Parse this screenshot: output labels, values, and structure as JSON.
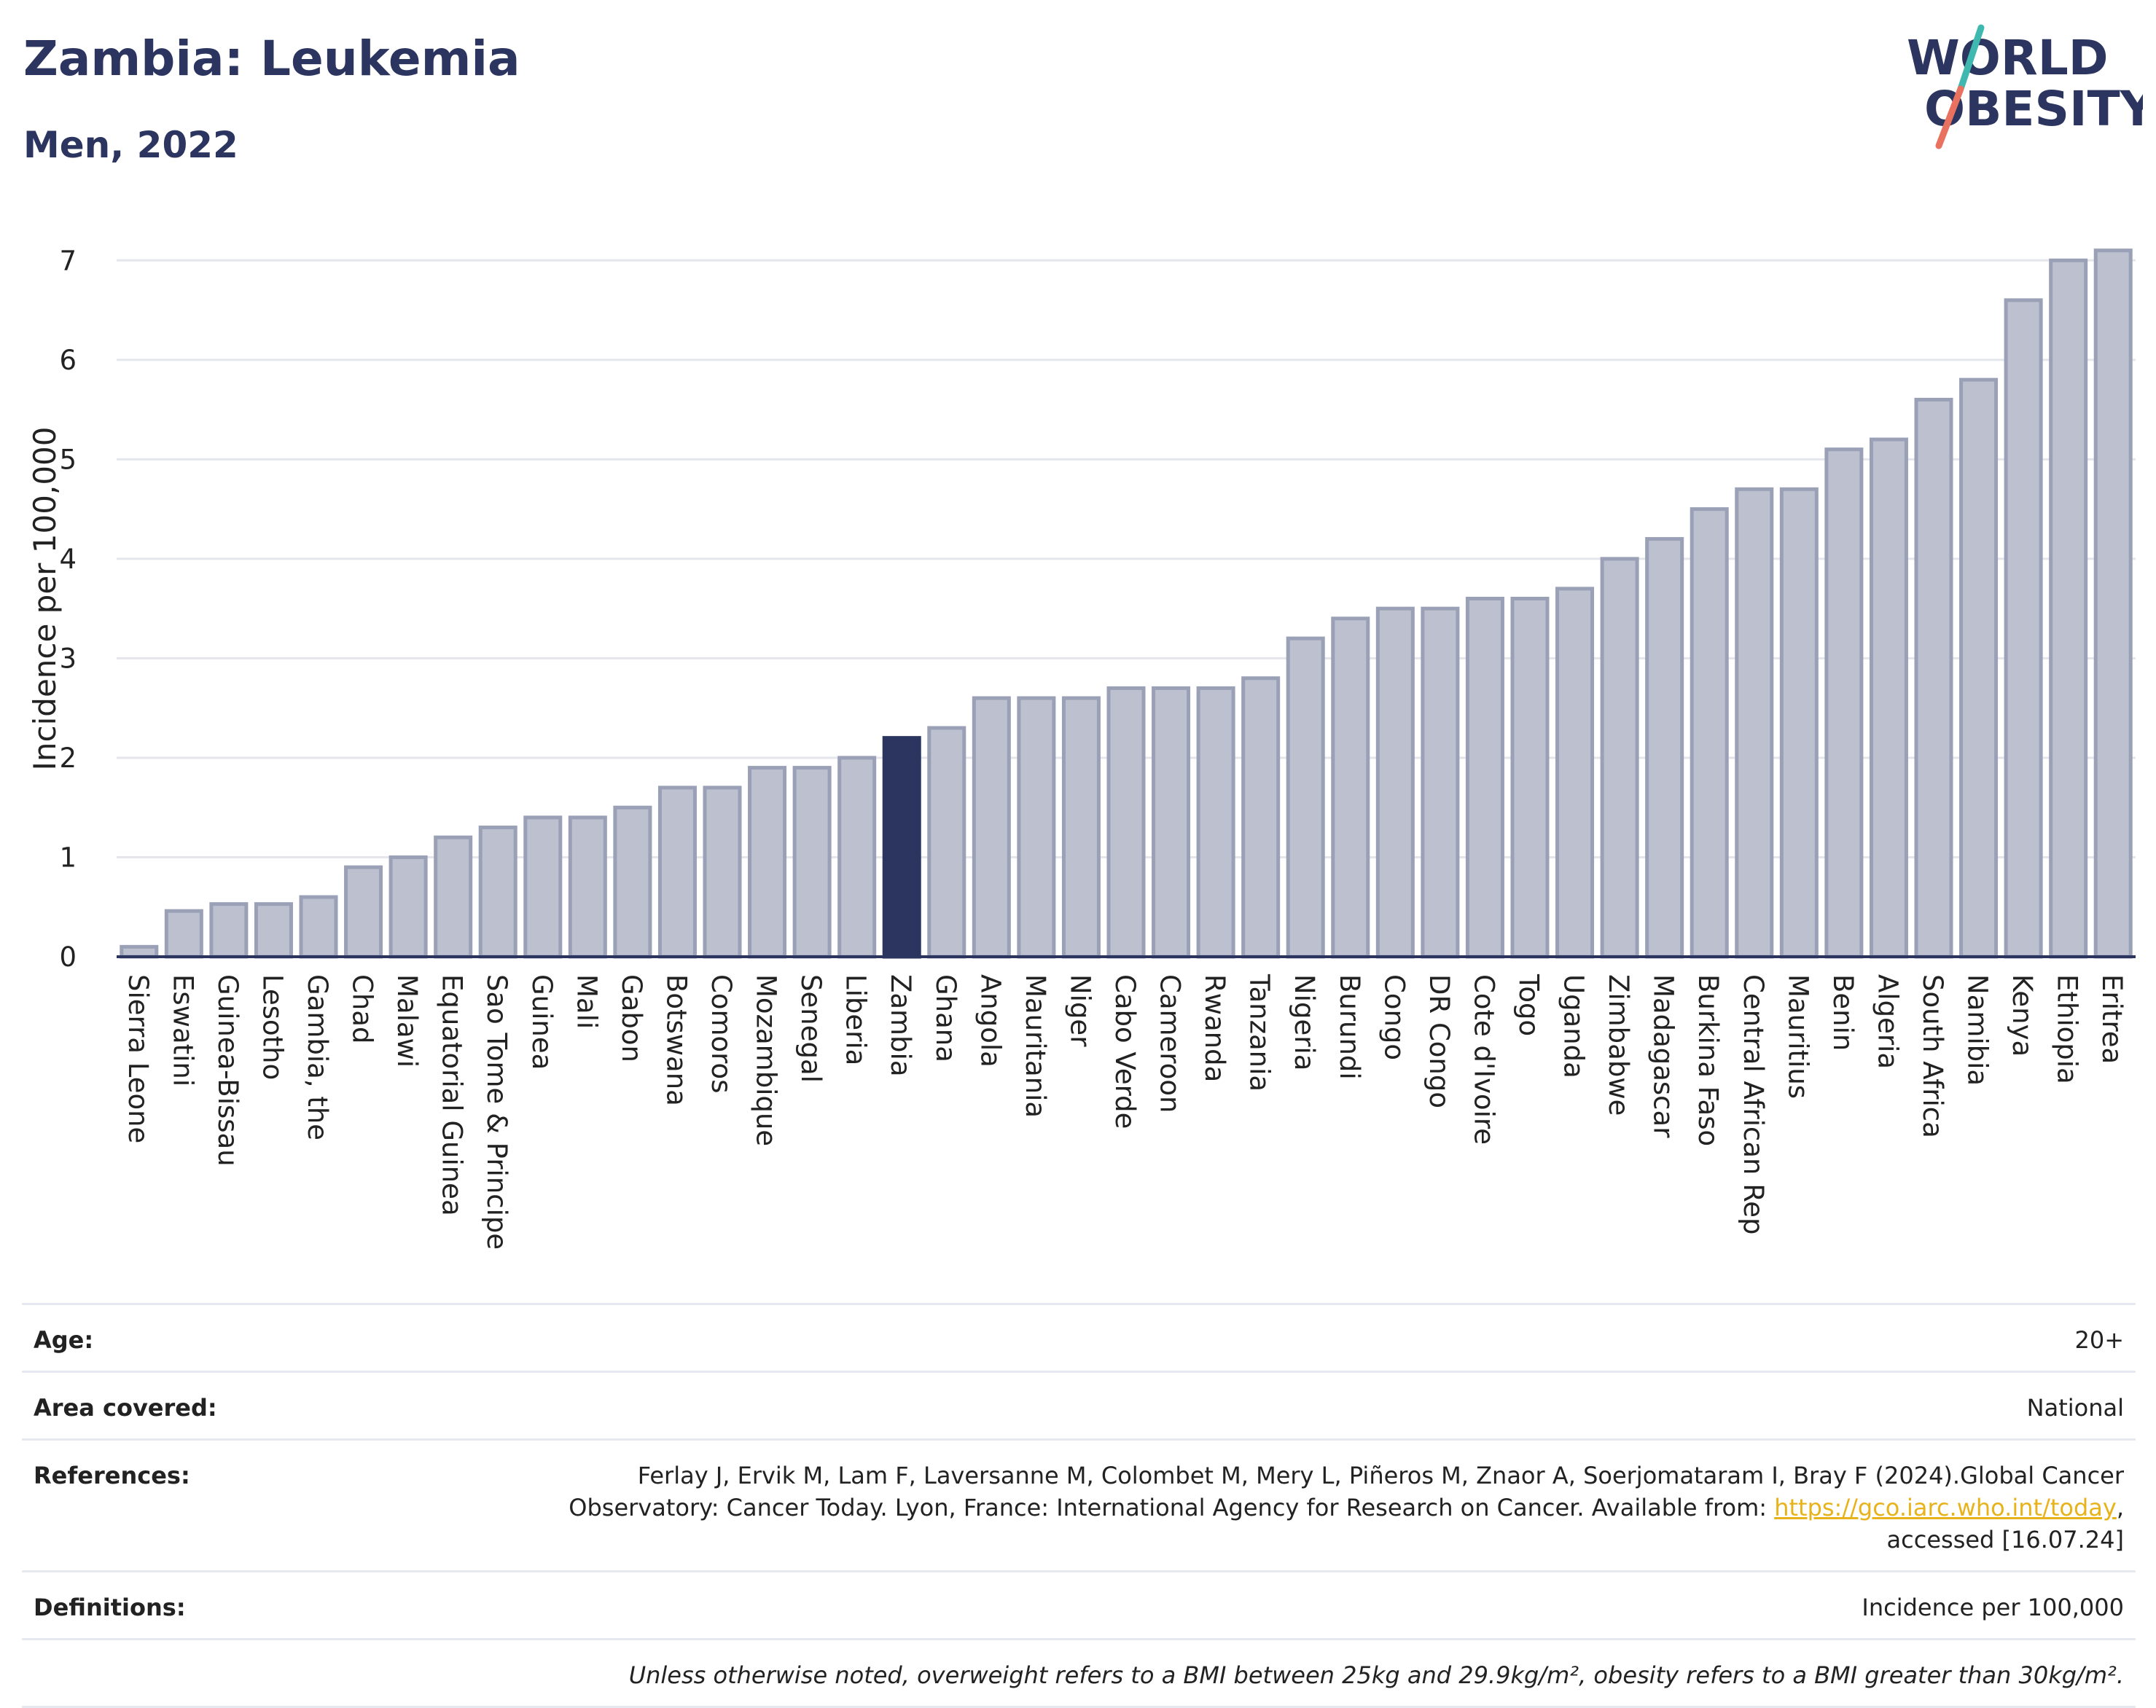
{
  "header": {
    "title": "Zambia: Leukemia",
    "subtitle": "Men, 2022",
    "logo_line1": "WORLD",
    "logo_line2": "OBESITY"
  },
  "chart_data": {
    "type": "bar",
    "title": "Zambia: Leukemia",
    "subtitle": "Men, 2022",
    "xlabel": "",
    "ylabel": "Incidence per 100,000",
    "ylim": [
      0,
      7.2
    ],
    "yticks": [
      0,
      1,
      2,
      3,
      4,
      5,
      6,
      7
    ],
    "grid": true,
    "highlight": "Zambia",
    "colors": {
      "bar": "#bcc0cf",
      "bar_edge": "#9aa0b6",
      "highlight": "#2b3560",
      "grid": "#e4e6ec",
      "axis": "#2b3560"
    },
    "categories": [
      "Sierra Leone",
      "Eswatini",
      "Guinea-Bissau",
      "Lesotho",
      "Gambia, the",
      "Chad",
      "Malawi",
      "Equatorial Guinea",
      "Sao Tome & Principe",
      "Guinea",
      "Mali",
      "Gabon",
      "Botswana",
      "Comoros",
      "Mozambique",
      "Senegal",
      "Liberia",
      "Zambia",
      "Ghana",
      "Angola",
      "Mauritania",
      "Niger",
      "Cabo Verde",
      "Cameroon",
      "Rwanda",
      "Tanzania",
      "Nigeria",
      "Burundi",
      "Congo",
      "DR Congo",
      "Cote d'Ivoire",
      "Togo",
      "Uganda",
      "Zimbabwe",
      "Madagascar",
      "Burkina Faso",
      "Central African Rep",
      "Mauritius",
      "Benin",
      "Algeria",
      "South Africa",
      "Namibia",
      "Kenya",
      "Ethiopia",
      "Eritrea"
    ],
    "values": [
      0.1,
      0.46,
      0.53,
      0.53,
      0.6,
      0.9,
      1.0,
      1.2,
      1.3,
      1.4,
      1.4,
      1.5,
      1.7,
      1.7,
      1.9,
      1.9,
      2.0,
      2.2,
      2.3,
      2.6,
      2.6,
      2.6,
      2.7,
      2.7,
      2.7,
      2.8,
      3.2,
      3.4,
      3.5,
      3.5,
      3.6,
      3.6,
      3.7,
      4.0,
      4.2,
      4.5,
      4.7,
      4.7,
      5.1,
      5.2,
      5.6,
      5.8,
      6.6,
      7.0,
      7.1
    ]
  },
  "info": {
    "age_label": "Age:",
    "age_value": "20+",
    "area_label": "Area covered:",
    "area_value": "National",
    "references_label": "References:",
    "references_line1": "Ferlay J, Ervik M, Lam F, Laversanne M, Colombet M, Mery L, Piñeros M, Znaor A, Soerjomataram I, Bray F (2024).Global Cancer",
    "references_line2_pre": "Observatory: Cancer Today. Lyon, France: International Agency for Research on Cancer. Available from: ",
    "references_link": "https://gco.iarc.who.int/today",
    "references_line2_post": ",",
    "references_line3": "accessed [16.07.24]",
    "definitions_label": "Definitions:",
    "definitions_value": "Incidence per 100,000",
    "note": "Unless otherwise noted, overweight refers to a BMI between 25kg and 29.9kg/m², obesity refers to a BMI greater than 30kg/m²."
  }
}
